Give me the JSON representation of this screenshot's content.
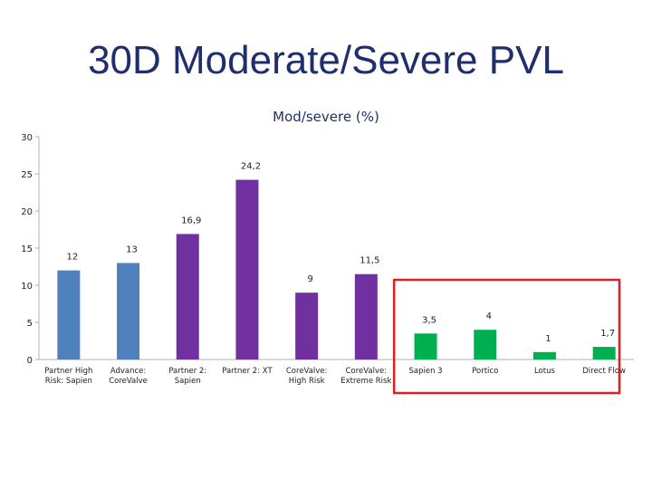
{
  "slide": {
    "title": "30D Moderate/Severe PVL"
  },
  "chart_data": {
    "type": "bar",
    "title": "Mod/severe (%)",
    "xlabel": "",
    "ylabel": "",
    "ylim": [
      0,
      30
    ],
    "yticks": [
      0,
      5,
      10,
      15,
      20,
      25,
      30
    ],
    "grid": false,
    "categories": [
      [
        "Partner High",
        "Risk: Sapien"
      ],
      [
        "Advance:",
        "CoreValve"
      ],
      [
        "Partner 2:",
        "Sapien"
      ],
      [
        "Partner 2: XT"
      ],
      [
        "CoreValve:",
        "High Risk"
      ],
      [
        "CoreValve:",
        "Extreme Risk"
      ],
      [
        "Sapien 3"
      ],
      [
        "Portico"
      ],
      [
        "Lotus"
      ],
      [
        "Direct Flow"
      ]
    ],
    "values": [
      12,
      13,
      16.9,
      24.2,
      9,
      11.5,
      3.5,
      4,
      1,
      1.7
    ],
    "value_labels": [
      "12",
      "13",
      "16,9",
      "24,2",
      "9",
      "11,5",
      "3,5",
      "4",
      "1",
      "1,7"
    ],
    "colors": [
      "#4f81bd",
      "#4f81bd",
      "#7030a0",
      "#7030a0",
      "#7030a0",
      "#7030a0",
      "#00b050",
      "#00b050",
      "#00b050",
      "#00b050"
    ],
    "highlight": {
      "color": "#e02020",
      "categories": [
        "Sapien 3",
        "Portico",
        "Lotus",
        "Direct Flow"
      ]
    }
  }
}
